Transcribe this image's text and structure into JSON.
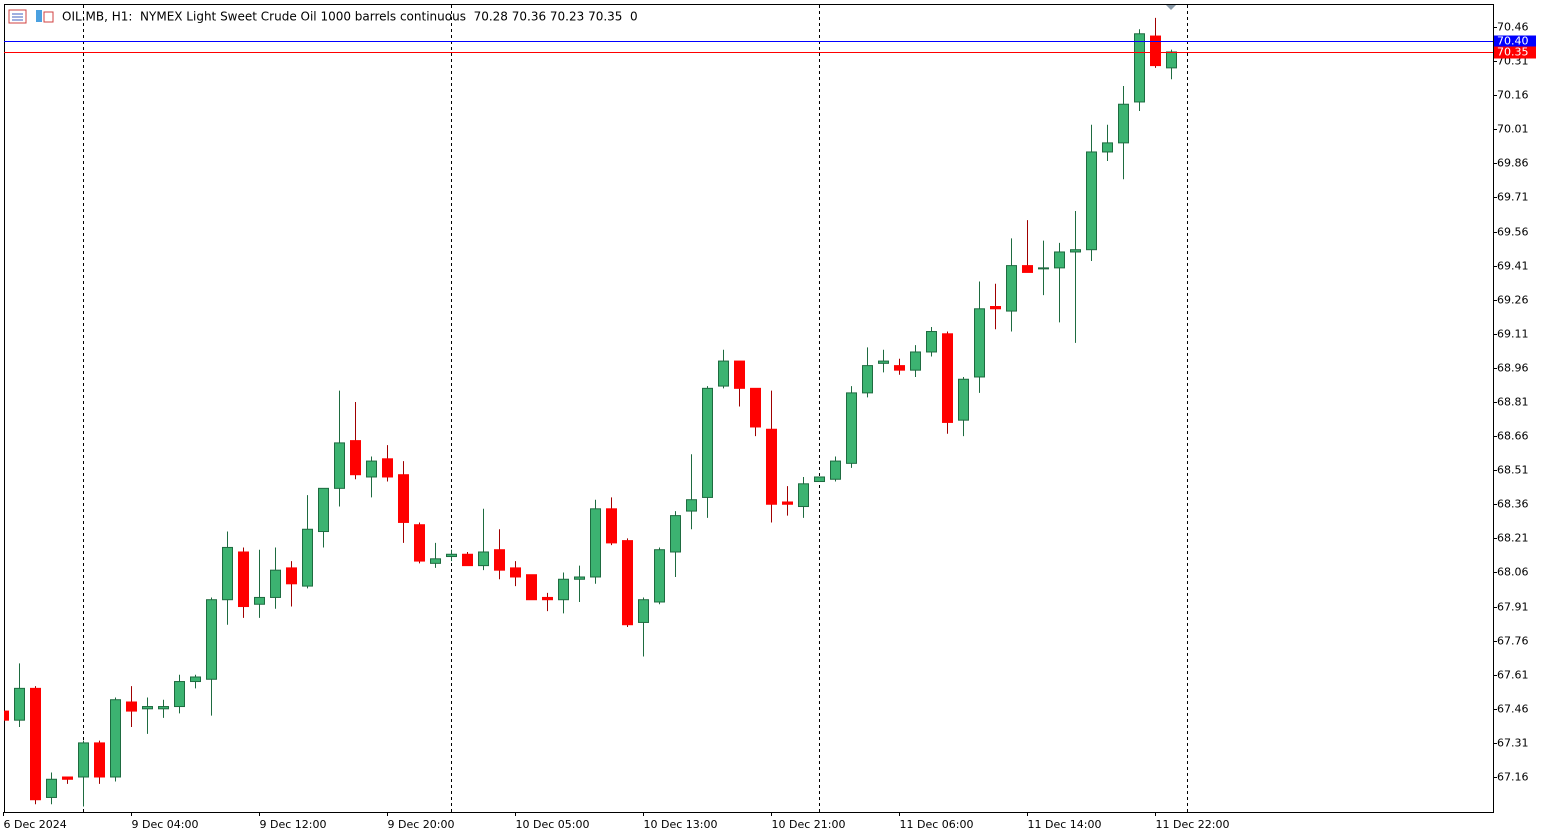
{
  "chart_data": {
    "type": "candlestick",
    "title": "OIL.MB, H1:  NYMEX Light Sweet Crude Oil 1000 barrels continuous  70.28 70.36 70.23 70.35  0",
    "categories": [
      "6 Dec 2024",
      null,
      null,
      null,
      null,
      null,
      null,
      null,
      "9 Dec 04:00",
      null,
      null,
      null,
      null,
      null,
      null,
      null,
      "9 Dec 12:00",
      null,
      null,
      null,
      null,
      null,
      null,
      null,
      "9 Dec 20:00",
      null,
      null,
      null,
      null,
      null,
      null,
      null,
      "10 Dec 05:00",
      null,
      null,
      null,
      null,
      null,
      null,
      null,
      "10 Dec 13:00",
      null,
      null,
      null,
      null,
      null,
      null,
      null,
      "10 Dec 21:00",
      null,
      null,
      null,
      null,
      null,
      null,
      null,
      "11 Dec 06:00",
      null,
      null,
      null,
      null,
      null,
      null,
      null,
      "11 Dec 14:00",
      null,
      null,
      null,
      null,
      null,
      null,
      null,
      "11 Dec 22:00",
      null
    ],
    "open": [
      67.45,
      67.41,
      67.55,
      67.07,
      67.16,
      67.16,
      67.31,
      67.16,
      67.49,
      67.46,
      67.46,
      67.47,
      67.58,
      67.59,
      67.94,
      68.15,
      67.92,
      67.95,
      68.08,
      68.0,
      68.24,
      68.43,
      68.64,
      68.48,
      68.56,
      68.49,
      68.27,
      68.1,
      68.13,
      68.14,
      68.09,
      68.16,
      68.08,
      68.05,
      67.95,
      67.94,
      68.03,
      68.04,
      68.34,
      68.2,
      67.84,
      67.93,
      68.15,
      68.33,
      68.39,
      68.88,
      68.99,
      68.87,
      68.69,
      68.37,
      68.35,
      68.46,
      68.47,
      68.54,
      68.85,
      68.98,
      68.97,
      68.95,
      69.03,
      69.11,
      68.73,
      68.92,
      69.23,
      69.21,
      69.41,
      69.4,
      69.4,
      69.47,
      69.48,
      69.91,
      69.95,
      70.13,
      70.42,
      70.28
    ],
    "high": [
      67.45,
      67.66,
      67.56,
      67.18,
      67.16,
      67.32,
      67.32,
      67.51,
      67.56,
      67.51,
      67.5,
      67.61,
      67.61,
      67.95,
      68.24,
      68.17,
      68.16,
      68.17,
      68.11,
      68.4,
      68.43,
      68.86,
      68.81,
      68.57,
      68.62,
      68.55,
      68.28,
      68.19,
      68.16,
      68.15,
      68.34,
      68.25,
      68.11,
      68.05,
      67.97,
      68.06,
      68.09,
      68.38,
      68.39,
      68.21,
      67.95,
      68.17,
      68.33,
      68.58,
      68.88,
      69.04,
      68.99,
      68.87,
      68.86,
      68.44,
      68.48,
      68.48,
      68.57,
      68.88,
      69.05,
      69.04,
      69.0,
      69.06,
      69.14,
      69.12,
      68.92,
      69.34,
      69.33,
      69.53,
      69.61,
      69.52,
      69.51,
      69.65,
      70.03,
      70.03,
      70.2,
      70.45,
      70.5,
      70.36
    ],
    "low": [
      67.41,
      67.38,
      67.04,
      67.04,
      67.13,
      67.03,
      67.13,
      67.14,
      67.38,
      67.35,
      67.42,
      67.44,
      67.55,
      67.43,
      67.83,
      67.86,
      67.86,
      67.9,
      67.91,
      67.99,
      68.17,
      68.35,
      68.47,
      68.39,
      68.46,
      68.19,
      68.1,
      68.08,
      68.11,
      68.09,
      68.07,
      68.03,
      68.0,
      67.94,
      67.89,
      67.88,
      67.93,
      68.01,
      68.18,
      67.82,
      67.69,
      67.92,
      68.04,
      68.25,
      68.3,
      68.87,
      68.79,
      68.66,
      68.28,
      68.31,
      68.3,
      68.46,
      68.46,
      68.52,
      68.83,
      68.94,
      68.93,
      68.92,
      69.01,
      68.67,
      68.66,
      68.85,
      69.13,
      69.12,
      69.38,
      69.28,
      69.16,
      69.07,
      69.43,
      69.87,
      69.79,
      70.09,
      70.28,
      70.23
    ],
    "close": [
      67.41,
      67.55,
      67.06,
      67.15,
      67.15,
      67.31,
      67.16,
      67.5,
      67.45,
      67.47,
      67.47,
      67.58,
      67.6,
      67.94,
      68.17,
      67.91,
      67.95,
      68.07,
      68.01,
      68.25,
      68.43,
      68.63,
      68.49,
      68.55,
      68.48,
      68.28,
      68.11,
      68.12,
      68.14,
      68.09,
      68.15,
      68.07,
      68.04,
      67.94,
      67.94,
      68.03,
      68.04,
      68.34,
      68.19,
      67.83,
      67.94,
      68.16,
      68.31,
      68.38,
      68.87,
      68.99,
      68.87,
      68.7,
      68.36,
      68.36,
      68.45,
      68.48,
      68.55,
      68.85,
      68.97,
      68.99,
      68.95,
      69.03,
      69.12,
      68.72,
      68.91,
      69.22,
      69.22,
      69.41,
      69.38,
      69.4,
      69.47,
      69.48,
      69.91,
      69.95,
      70.12,
      70.43,
      70.29,
      70.35
    ],
    "up_color": "#3cb371",
    "down_color": "#ff0000",
    "ylim": [
      67.006,
      70.561
    ],
    "yticks": [
      70.46,
      70.31,
      70.16,
      70.01,
      69.86,
      69.71,
      69.56,
      69.41,
      69.26,
      69.11,
      68.96,
      68.81,
      68.66,
      68.51,
      68.36,
      68.21,
      68.06,
      67.91,
      67.76,
      67.61,
      67.46,
      67.31,
      67.16
    ],
    "grid": false,
    "price_lines": [
      {
        "value": 70.4,
        "label": "70.40",
        "color": "#0000ff"
      },
      {
        "value": 70.35,
        "label": "70.35",
        "color": "#ff0000"
      }
    ]
  }
}
